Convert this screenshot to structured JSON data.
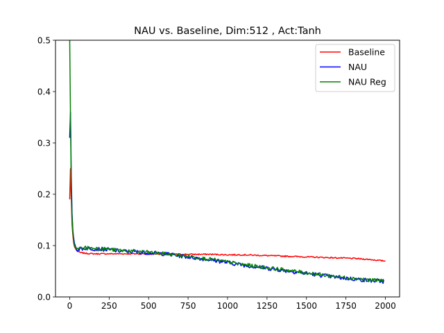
{
  "chart_data": {
    "type": "line",
    "title": "NAU vs. Baseline, Dim:512 , Act:Tanh",
    "xlabel": "",
    "ylabel": "",
    "xlim": [
      -90,
      2090
    ],
    "ylim": [
      0,
      0.5
    ],
    "xticks": [
      0,
      250,
      500,
      750,
      1000,
      1250,
      1500,
      1750,
      2000
    ],
    "xtick_labels": [
      "0",
      "250",
      "500",
      "750",
      "1000",
      "1250",
      "1500",
      "1750",
      "2000"
    ],
    "yticks": [
      0.0,
      0.1,
      0.2,
      0.3,
      0.4,
      0.5
    ],
    "ytick_labels": [
      "0.0",
      "0.1",
      "0.2",
      "0.3",
      "0.4",
      "0.5"
    ],
    "grid": false,
    "legend_position": "top-right",
    "series": [
      {
        "name": "Baseline",
        "color": "#ff0000",
        "x": [
          0,
          2,
          5,
          10,
          15,
          20,
          25,
          30,
          40,
          50,
          60,
          75,
          100,
          150,
          200,
          250,
          300,
          400,
          500,
          600,
          700,
          800,
          900,
          1000,
          1100,
          1200,
          1300,
          1400,
          1500,
          1600,
          1700,
          1800,
          1900,
          1960,
          2000
        ],
        "y": [
          0.19,
          0.3,
          0.25,
          0.19,
          0.14,
          0.12,
          0.105,
          0.098,
          0.092,
          0.089,
          0.087,
          0.086,
          0.085,
          0.084,
          0.084,
          0.084,
          0.084,
          0.084,
          0.084,
          0.084,
          0.083,
          0.083,
          0.083,
          0.082,
          0.082,
          0.081,
          0.08,
          0.079,
          0.078,
          0.077,
          0.076,
          0.075,
          0.073,
          0.071,
          0.07
        ],
        "noise": 0.0012
      },
      {
        "name": "NAU",
        "color": "#0000ff",
        "x": [
          0,
          3,
          5,
          8,
          12,
          16,
          20,
          25,
          30,
          40,
          50,
          60,
          75,
          100,
          150,
          200,
          250,
          300,
          400,
          500,
          600,
          700,
          800,
          900,
          1000,
          1100,
          1200,
          1300,
          1400,
          1500,
          1600,
          1700,
          1800,
          1900,
          1960,
          1990
        ],
        "y": [
          0.31,
          0.45,
          0.36,
          0.27,
          0.2,
          0.15,
          0.13,
          0.115,
          0.105,
          0.095,
          0.092,
          0.093,
          0.094,
          0.095,
          0.094,
          0.093,
          0.092,
          0.09,
          0.088,
          0.086,
          0.084,
          0.08,
          0.076,
          0.072,
          0.067,
          0.062,
          0.058,
          0.054,
          0.05,
          0.046,
          0.042,
          0.038,
          0.035,
          0.032,
          0.031,
          0.03
        ],
        "noise": 0.004
      },
      {
        "name": "NAU Reg",
        "color": "#008000",
        "x": [
          0,
          2,
          4,
          6,
          9,
          13,
          17,
          21,
          25,
          30,
          40,
          50,
          60,
          75,
          100,
          150,
          200,
          250,
          300,
          400,
          500,
          600,
          700,
          800,
          900,
          1000,
          1100,
          1200,
          1300,
          1400,
          1500,
          1600,
          1700,
          1800,
          1900,
          1960,
          1990
        ],
        "y": [
          0.5,
          0.5,
          0.4,
          0.3,
          0.22,
          0.17,
          0.14,
          0.12,
          0.11,
          0.1,
          0.094,
          0.093,
          0.094,
          0.095,
          0.096,
          0.095,
          0.094,
          0.093,
          0.091,
          0.089,
          0.087,
          0.084,
          0.081,
          0.077,
          0.073,
          0.068,
          0.063,
          0.059,
          0.055,
          0.051,
          0.047,
          0.043,
          0.039,
          0.036,
          0.033,
          0.032,
          0.032
        ],
        "noise": 0.0036
      }
    ]
  }
}
